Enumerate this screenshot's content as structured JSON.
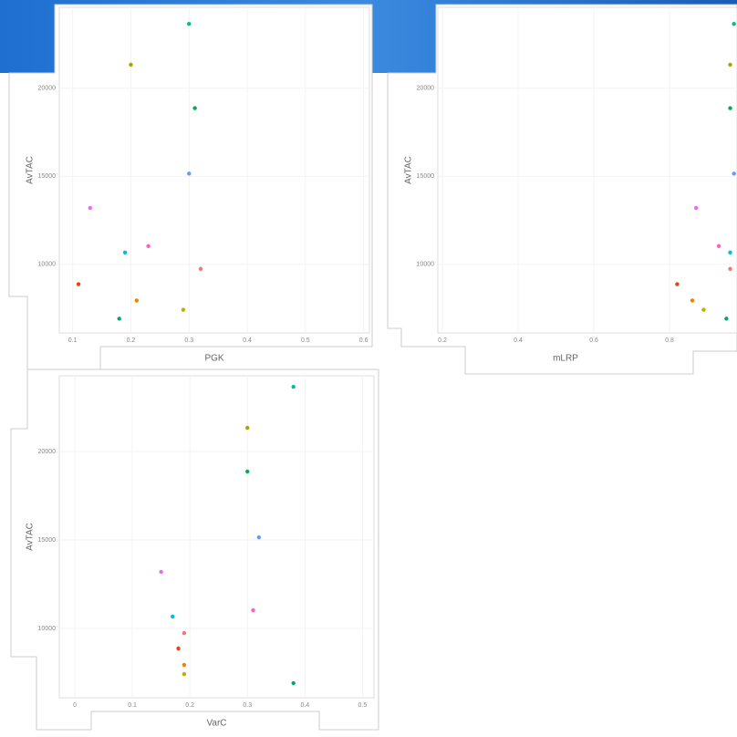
{
  "chart_data": [
    {
      "type": "scatter",
      "x_label": "PGK",
      "y_label": "AvTAC",
      "x": [
        0.3,
        0.2,
        0.31,
        0.3,
        0.13,
        0.23,
        0.19,
        0.32,
        0.11,
        0.21,
        0.29,
        0.18
      ],
      "values": [
        23660,
        21340,
        18870,
        15150,
        13200,
        11030,
        10670,
        9740,
        8870,
        7940,
        7420,
        6910
      ],
      "colors": [
        "#00c08b",
        "#a3a500",
        "#00b050",
        "#619cff",
        "#e76bf3",
        "#ff62bc",
        "#00bcd8",
        "#f8766d",
        "#e7401f",
        "#e58700",
        "#c9a800",
        "#00a86b"
      ],
      "xlim": [
        0.077,
        0.61
      ],
      "xticks": [
        0.1,
        0.2,
        0.3,
        0.4,
        0.5,
        0.6
      ],
      "ylim": [
        6100,
        24600
      ],
      "yticks": [
        10000,
        15000,
        20000
      ]
    },
    {
      "type": "scatter",
      "x_label": "mLRP",
      "y_label": "AvTAC",
      "x": [
        0.97,
        0.96,
        0.96,
        0.97,
        0.87,
        0.93,
        0.96,
        0.96,
        0.82,
        0.86,
        0.89,
        0.95
      ],
      "values": [
        23660,
        21340,
        18870,
        15150,
        13200,
        11030,
        10670,
        9740,
        8870,
        7940,
        7420,
        6910
      ],
      "colors": [
        "#00c08b",
        "#a3a500",
        "#00b050",
        "#619cff",
        "#e76bf3",
        "#ff62bc",
        "#00bcd8",
        "#f8766d",
        "#e7401f",
        "#e58700",
        "#c9a800",
        "#00a86b"
      ],
      "xlim": [
        0.188,
        0.978
      ],
      "xticks": [
        0.2,
        0.4,
        0.6,
        0.8
      ],
      "ylim": [
        6100,
        24600
      ],
      "yticks": [
        10000,
        15000,
        20000
      ]
    },
    {
      "type": "scatter",
      "x_label": "VarC",
      "y_label": "AvTAC",
      "x": [
        0.38,
        0.3,
        0.3,
        0.32,
        0.15,
        0.31,
        0.17,
        0.19,
        0.18,
        0.19,
        0.19,
        0.38
      ],
      "values": [
        23660,
        21340,
        18870,
        15150,
        13200,
        11030,
        10670,
        9740,
        8870,
        7940,
        7420,
        6910
      ],
      "colors": [
        "#00c08b",
        "#a3a500",
        "#00b050",
        "#619cff",
        "#e76bf3",
        "#ff62bc",
        "#00bcd8",
        "#f8766d",
        "#e7401f",
        "#e58700",
        "#c9a800",
        "#00a86b"
      ],
      "xlim": [
        -0.027,
        0.52
      ],
      "xticks": [
        0,
        0.1,
        0.2,
        0.3,
        0.4,
        0.5
      ],
      "ylim": [
        6080,
        24280
      ],
      "yticks": [
        10000,
        15000,
        20000
      ]
    }
  ]
}
